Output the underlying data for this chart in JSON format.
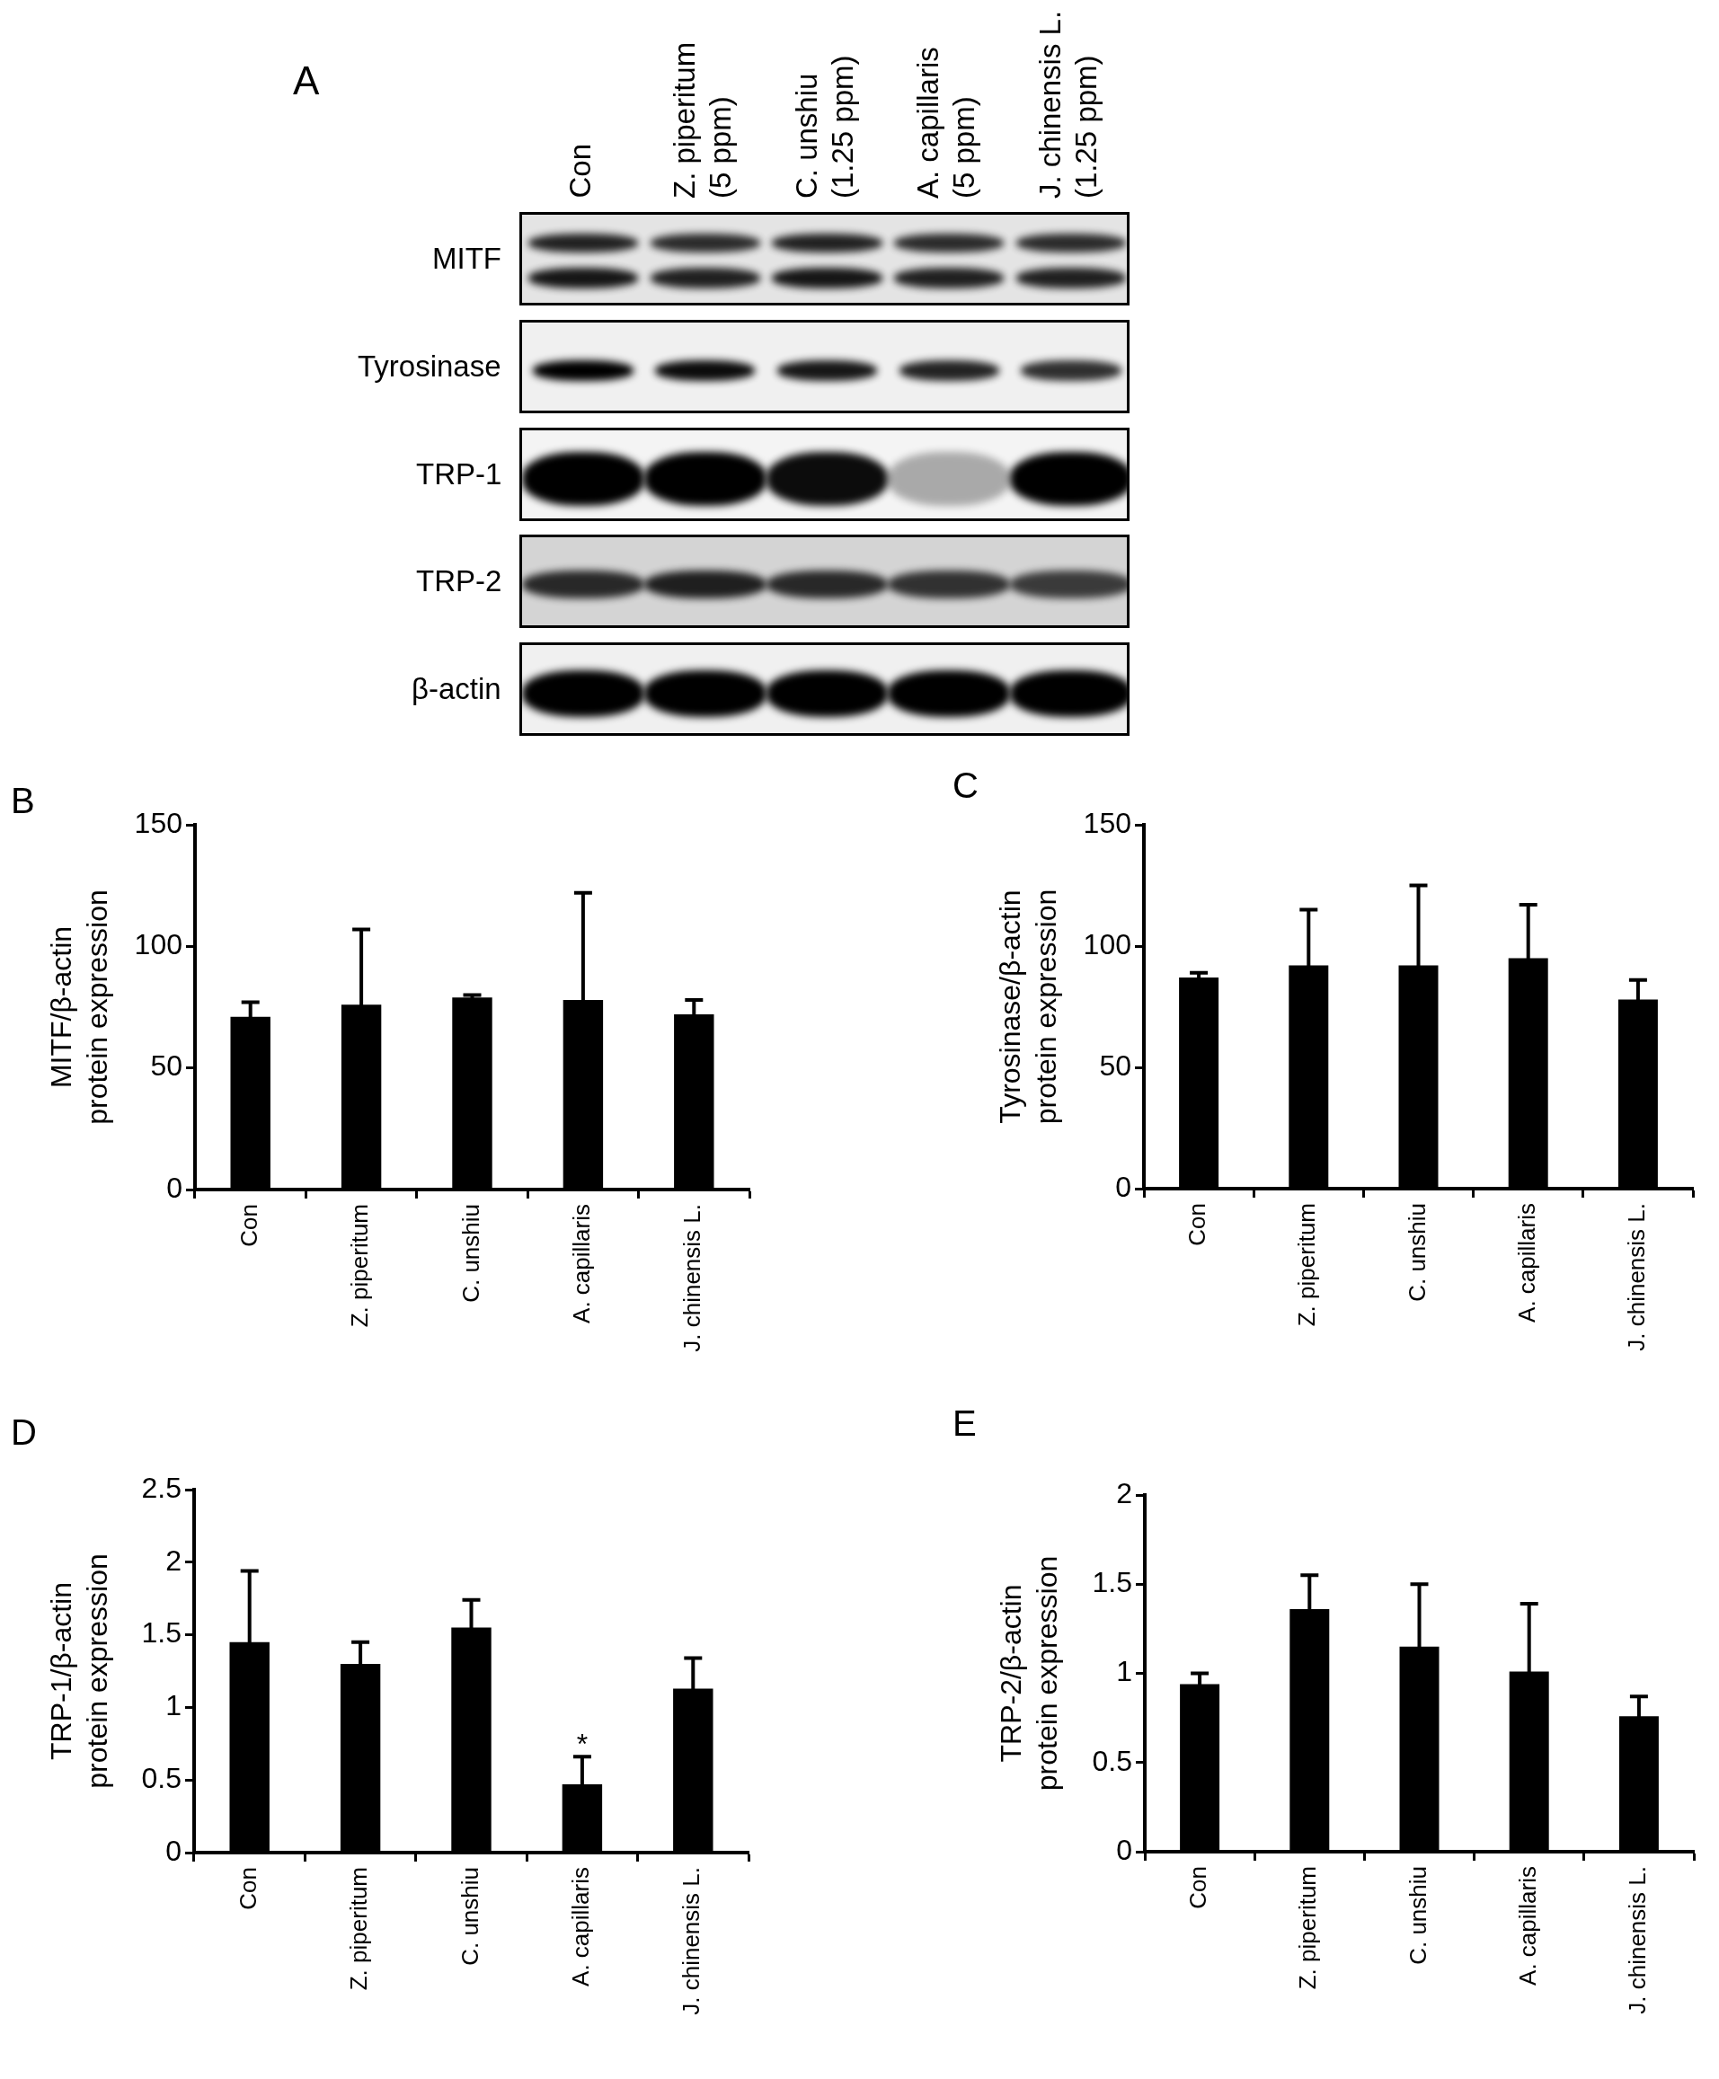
{
  "chart_data": [
    {
      "type": "other",
      "title": "A",
      "categories": [
        "Con",
        "Z. piperitum (5 ppm)",
        "C. unshiu (1.25 ppm)",
        "A. capillaris (5 ppm)",
        "J. chinensis L. (1.25 ppm)"
      ],
      "y_categories": [
        "MITF",
        "Tyrosinase",
        "TRP-1",
        "TRP-2",
        "β-actin"
      ]
    },
    {
      "type": "bar",
      "title": "B",
      "ylabel": "MITF/β-actin protein expression",
      "categories": [
        "Con",
        "Z. piperitum",
        "C. unshiu",
        "A. capillaris",
        "J. chinensis L."
      ],
      "values": [
        71,
        76,
        79,
        78,
        72
      ],
      "errors": [
        6,
        31,
        1,
        44,
        6
      ],
      "color": "#000000",
      "ylim": [
        0,
        150
      ],
      "yticks": [
        0,
        50,
        100,
        150
      ],
      "grid": false,
      "legend": false
    },
    {
      "type": "bar",
      "title": "C",
      "ylabel": "Tyrosinase/β-actin protein expression",
      "categories": [
        "Con",
        "Z. piperitum",
        "C. unshiu",
        "A. capillaris",
        "J. chinensis L."
      ],
      "values": [
        87,
        92,
        92,
        95,
        78
      ],
      "errors": [
        2,
        23,
        33,
        22,
        8
      ],
      "color": "#000000",
      "ylim": [
        0,
        150
      ],
      "yticks": [
        0,
        50,
        100,
        150
      ],
      "grid": false,
      "legend": false
    },
    {
      "type": "bar",
      "title": "D",
      "ylabel": "TRP-1/β-actin protein expression",
      "categories": [
        "Con",
        "Z. piperitum",
        "C. unshiu",
        "A. capillaris",
        "J. chinensis L."
      ],
      "values": [
        1.45,
        1.3,
        1.55,
        0.47,
        1.13
      ],
      "errors": [
        0.49,
        0.15,
        0.19,
        0.19,
        0.21
      ],
      "color": "#000000",
      "ylim": [
        0,
        2.5
      ],
      "yticks": [
        0,
        0.5,
        1,
        1.5,
        2,
        2.5
      ],
      "grid": false,
      "legend": false,
      "annotations": [
        "*"
      ]
    },
    {
      "type": "bar",
      "title": "E",
      "ylabel": "TRP-2/β-actin protein expression",
      "categories": [
        "Con",
        "Z. piperitum",
        "C. unshiu",
        "A. capillaris",
        "J. chinensis L."
      ],
      "values": [
        0.94,
        1.36,
        1.15,
        1.01,
        0.76
      ],
      "errors": [
        0.06,
        0.19,
        0.35,
        0.38,
        0.11
      ],
      "color": "#000000",
      "ylim": [
        0,
        2
      ],
      "yticks": [
        0,
        0.5,
        1,
        1.5,
        2
      ],
      "grid": false,
      "legend": false
    }
  ]
}
